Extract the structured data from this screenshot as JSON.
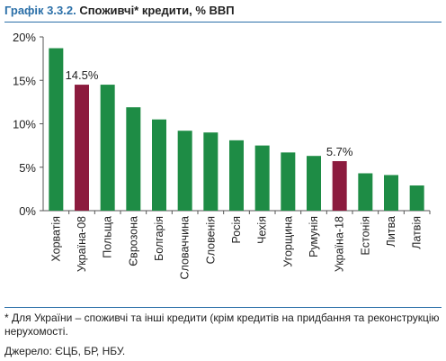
{
  "header": {
    "label": "Графік 3.3.2.",
    "title": "Споживчі* кредити, % ВВП"
  },
  "chart_data": {
    "type": "bar",
    "categories": [
      "Хорватія",
      "Україна-08",
      "Польща",
      "Єврозона",
      "Болгарія",
      "Словаччина",
      "Словенія",
      "Росія",
      "Чехія",
      "Угорщина",
      "Румунія",
      "Україна-18",
      "Естонія",
      "Литва",
      "Латвія"
    ],
    "values": [
      18.7,
      14.5,
      14.5,
      11.9,
      10.5,
      9.2,
      9.0,
      8.1,
      7.5,
      6.7,
      6.3,
      5.7,
      4.3,
      4.1,
      2.9
    ],
    "highlight": [
      "Україна-08",
      "Україна-18"
    ],
    "data_labels": [
      {
        "category": "Україна-08",
        "text": "14.5%"
      },
      {
        "category": "Україна-18",
        "text": "5.7%"
      }
    ],
    "yticks": [
      "0%",
      "5%",
      "10%",
      "15%",
      "20%"
    ],
    "ylim": [
      0,
      20
    ],
    "grid": false,
    "colors": {
      "bar": "#1e8c45",
      "highlight": "#8c1b3e",
      "axis": "#555555"
    }
  },
  "footnote": "* Для України – споживчі та інші кредити (крім кредитів на придбання та реконструкцію нерухомості.",
  "source": "Джерело: ЄЦБ, БР, НБУ."
}
